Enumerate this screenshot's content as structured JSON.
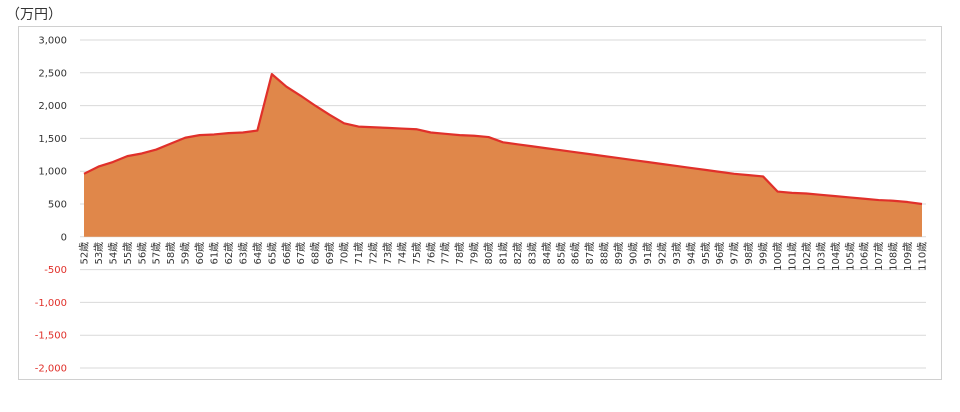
{
  "unit_label": "（万円）",
  "chart_data": {
    "type": "area",
    "title": "",
    "xlabel": "",
    "ylabel": "",
    "ylim": [
      -2000,
      3000
    ],
    "yticks": [
      3000,
      2500,
      2000,
      1500,
      1000,
      500,
      0,
      -500,
      -1000,
      -1500,
      -2000
    ],
    "ytick_labels": [
      "3,000",
      "2,500",
      "2,000",
      "1,500",
      "1,000",
      "500",
      "0",
      "-500",
      "-1,000",
      "-1,500",
      "-2,000"
    ],
    "grid": true,
    "legend": "none",
    "colors": {
      "fill": "#e0874a",
      "line": "#e0302a",
      "positive_tick": "#333333",
      "negative_tick": "#e0302a",
      "grid": "#d9d9d9"
    },
    "categories": [
      "52歳",
      "53歳",
      "54歳",
      "55歳",
      "56歳",
      "57歳",
      "58歳",
      "59歳",
      "60歳",
      "61歳",
      "62歳",
      "63歳",
      "64歳",
      "65歳",
      "66歳",
      "67歳",
      "68歳",
      "69歳",
      "70歳",
      "71歳",
      "72歳",
      "73歳",
      "74歳",
      "75歳",
      "76歳",
      "77歳",
      "78歳",
      "79歳",
      "80歳",
      "81歳",
      "82歳",
      "83歳",
      "84歳",
      "85歳",
      "86歳",
      "87歳",
      "88歳",
      "89歳",
      "90歳",
      "91歳",
      "92歳",
      "93歳",
      "94歳",
      "95歳",
      "96歳",
      "97歳",
      "98歳",
      "99歳",
      "100歳",
      "101歳",
      "102歳",
      "103歳",
      "104歳",
      "105歳",
      "106歳",
      "107歳",
      "108歳",
      "109歳",
      "110歳"
    ],
    "values": [
      960,
      1070,
      1140,
      1230,
      1270,
      1330,
      1420,
      1510,
      1550,
      1560,
      1580,
      1590,
      1620,
      2480,
      2290,
      2150,
      2000,
      1860,
      1730,
      1680,
      1670,
      1660,
      1650,
      1640,
      1590,
      1570,
      1550,
      1540,
      1520,
      1440,
      1410,
      1380,
      1350,
      1320,
      1290,
      1260,
      1230,
      1200,
      1170,
      1140,
      1110,
      1080,
      1050,
      1020,
      990,
      960,
      940,
      920,
      690,
      670,
      660,
      640,
      620,
      600,
      580,
      560,
      550,
      530,
      500
    ]
  }
}
